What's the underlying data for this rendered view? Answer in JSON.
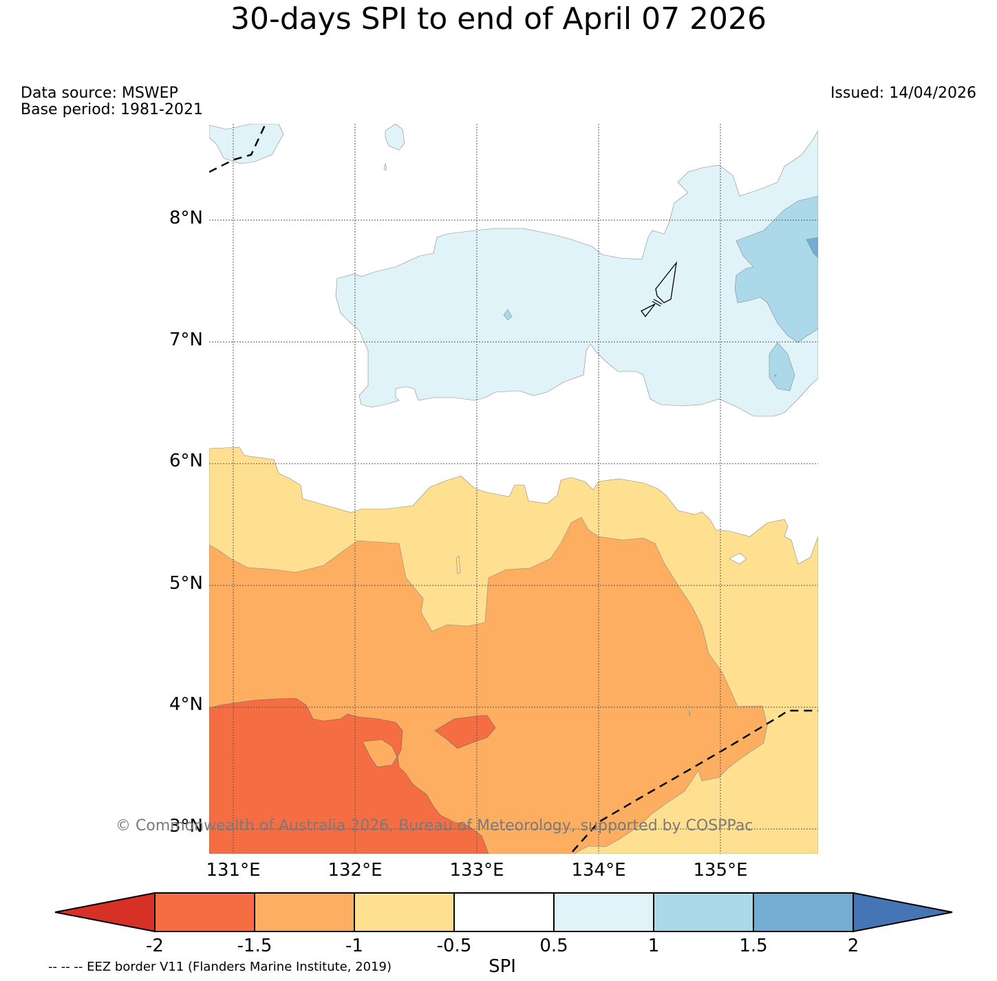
{
  "title": "30-days SPI to end of April 07 2026",
  "data_source": "Data source: MSWEP",
  "base_period": "Base period: 1981-2021",
  "issued": "Issued: 14/04/2026",
  "latitude_labels": [
    "8°N",
    "7°N",
    "6°N",
    "5°N",
    "4°N",
    "3°N"
  ],
  "longitude_labels": [
    "131°E",
    "132°E",
    "133°E",
    "134°E",
    "135°E"
  ],
  "copyright": "© Commonwealth of Australia 2026, Bureau of Meteorology, supported by COSPPac",
  "colorbar": {
    "title": "SPI",
    "ticks": [
      "-2",
      "-1.5",
      "-1",
      "-0.5",
      "0.5",
      "1",
      "1.5",
      "2"
    ],
    "colors": [
      "#d73027",
      "#f46d43",
      "#fdae61",
      "#fee090",
      "#ffffff",
      "#e0f3f8",
      "#abd9e9",
      "#74add1",
      "#4575b4"
    ]
  },
  "eez_note": "-- -- -- EEZ border V11 (Flanders Marine Institute, 2019)",
  "colors": {
    "spi_lt_-1.5": "#f46d43",
    "spi_-1.5_-1": "#fdae61",
    "spi_-1_-0.5": "#fee090",
    "spi_0.5_1": "#e0f3f8",
    "spi_1_1.5": "#abd9e9",
    "spi_1.5_2": "#74add1"
  }
}
